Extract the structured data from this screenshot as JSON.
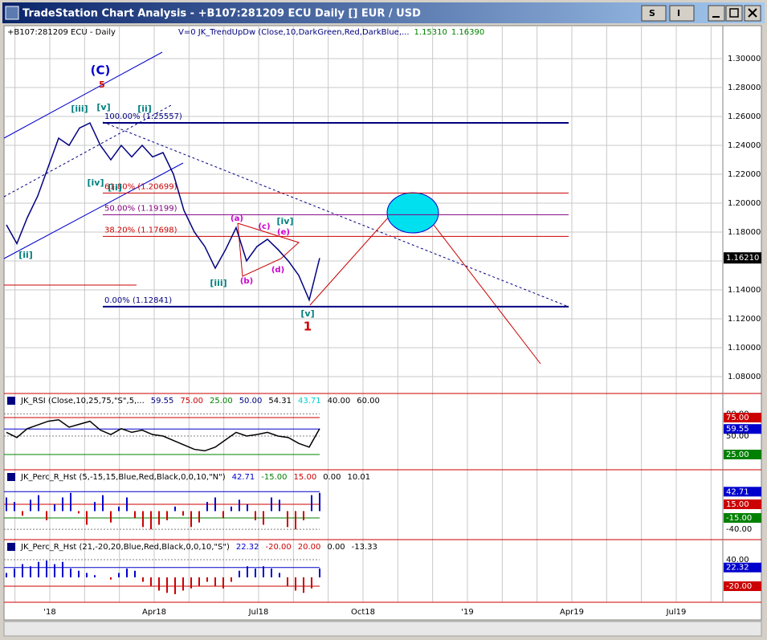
{
  "window": {
    "title": "TradeStation Chart Analysis - +B107:281209 ECU Daily [] EUR / USD",
    "buttons": [
      "S",
      "I"
    ]
  },
  "main_panel": {
    "symbol_label": "+B107:281209 ECU - Daily",
    "indicator_label": "V=0  JK_TrendUpDw (Close,10,DarkGreen,Red,DarkBlue,...",
    "indicator_values": [
      {
        "value": 1.1531,
        "label": "1.15310"
      },
      {
        "value": 1.1639,
        "label": "1.16390"
      }
    ],
    "ylim": [
      1.0683,
      1.3228
    ],
    "yticks": [
      {
        "value": 1.3,
        "label": "1.30000"
      },
      {
        "value": 1.28,
        "label": "1.28000"
      },
      {
        "value": 1.26,
        "label": "1.26000"
      },
      {
        "value": 1.24,
        "label": "1.24000"
      },
      {
        "value": 1.22,
        "label": "1.22000"
      },
      {
        "value": 1.2,
        "label": "1.20000"
      },
      {
        "value": 1.18,
        "label": "1.18000"
      },
      {
        "value": 1.16,
        "label": "1.16000"
      },
      {
        "value": 1.14,
        "label": "1.14000"
      },
      {
        "value": 1.12,
        "label": "1.12000"
      },
      {
        "value": 1.1,
        "label": "1.10000"
      },
      {
        "value": 1.08,
        "label": "1.08000"
      }
    ],
    "last_price": {
      "value": 1.1621,
      "label": "1.16210"
    },
    "fib_levels": [
      {
        "label": "100.00% (1.25557)",
        "value": 1.25557,
        "color": "#000080"
      },
      {
        "label": "61.80% (1.20699)",
        "value": 1.20699,
        "color": "#cc0000"
      },
      {
        "label": "50.00% (1.19199)",
        "value": 1.19199,
        "color": "#800080"
      },
      {
        "label": "38.20% (1.17698)",
        "value": 1.17698,
        "color": "#cc0000"
      },
      {
        "label": "0.00% (1.12841)",
        "value": 1.12841,
        "color": "#000080"
      }
    ],
    "price": {
      "color": "#000080",
      "values": [
        1.185,
        1.172,
        1.19,
        1.205,
        1.225,
        1.245,
        1.24,
        1.252,
        1.2555,
        1.24,
        1.23,
        1.24,
        1.232,
        1.24,
        1.232,
        1.235,
        1.22,
        1.195,
        1.18,
        1.17,
        1.155,
        1.168,
        1.183,
        1.16,
        1.17,
        1.175,
        1.168,
        1.16,
        1.15,
        1.133,
        1.162
      ]
    },
    "annotations": [
      "(C)",
      "5",
      "[iii]",
      "[v]",
      "[ii]",
      "[iv]",
      "[ii]",
      "[ii]",
      "[iii]",
      "(a)",
      "(b)",
      "(c)",
      "(d)",
      "(e)",
      "[iv]",
      "[v]",
      "1"
    ]
  },
  "rsi_panel": {
    "header": "JK_RSI (Close,10,25,75,\"S\",5,...",
    "header_values": [
      {
        "value": 59.55,
        "color": "#000080"
      },
      {
        "value": 75,
        "label": "75.00",
        "color": "#cc0000"
      },
      {
        "value": 25,
        "label": "25.00",
        "color": "#008000"
      },
      {
        "value": 50,
        "label": "50.00",
        "color": "#000080"
      },
      {
        "value": 54.31,
        "color": "#000000"
      },
      {
        "value": 43.71,
        "color": "#00cccc"
      },
      {
        "value": 40,
        "label": "40.00",
        "color": "#000000"
      },
      {
        "value": 60,
        "label": "60.00",
        "color": "#000000"
      }
    ],
    "axis_labels": [
      {
        "value": 80,
        "label": "80.00"
      },
      {
        "value": 75,
        "label": "75.00",
        "bg": "#cc0000"
      },
      {
        "value": 59.55,
        "bg": "#0000cc"
      },
      {
        "value": 50,
        "label": "50.00"
      },
      {
        "value": 25,
        "label": "25.00",
        "bg": "#008000"
      }
    ],
    "values": [
      55,
      48,
      60,
      65,
      70,
      72,
      62,
      66,
      70,
      58,
      52,
      60,
      55,
      58,
      52,
      50,
      44,
      38,
      32,
      30,
      35,
      45,
      55,
      50,
      52,
      55,
      50,
      48,
      40,
      35,
      60
    ]
  },
  "perc_panel_1": {
    "header": "JK_Perc_R_Hst (5,-15,15,Blue,Red,Black,0,0,10,\"N\")",
    "header_values": [
      {
        "value": 42.71,
        "color": "#0000cc"
      },
      {
        "value": -15,
        "label": "-15.00",
        "color": "#008000"
      },
      {
        "value": 15,
        "label": "15.00",
        "color": "#cc0000"
      },
      {
        "value": 0,
        "label": "0.00",
        "color": "#000000"
      },
      {
        "value": 10.01,
        "color": "#000000"
      }
    ],
    "axis_labels": [
      {
        "value": 42.71,
        "bg": "#0000cc"
      },
      {
        "value": 15,
        "label": "15.00",
        "bg": "#cc0000"
      },
      {
        "value": -15,
        "label": "-15.00",
        "bg": "#008000"
      },
      {
        "value": -40,
        "label": "-40.00"
      }
    ],
    "values": [
      30,
      20,
      -10,
      25,
      35,
      -20,
      15,
      30,
      40,
      -5,
      -30,
      20,
      35,
      -25,
      10,
      30,
      -15,
      -35,
      -40,
      -30,
      -20,
      10,
      -10,
      -35,
      -25,
      20,
      30,
      -15,
      10,
      25,
      15,
      -20,
      -30,
      30,
      25,
      -35,
      -40,
      -20,
      35,
      40
    ]
  },
  "perc_panel_2": {
    "header": "JK_Perc_R_Hst (21,-20,20,Blue,Red,Black,0,0,10,\"S\")",
    "header_values": [
      {
        "value": 22.32,
        "color": "#0000cc"
      },
      {
        "value": -20,
        "label": "-20.00",
        "color": "#cc0000"
      },
      {
        "value": 20,
        "label": "20.00",
        "color": "#cc0000"
      },
      {
        "value": 0,
        "label": "0.00",
        "color": "#000000"
      },
      {
        "value": -13.33,
        "color": "#000000"
      }
    ],
    "axis_labels": [
      {
        "value": 40,
        "label": "40.00"
      },
      {
        "value": 22.32,
        "bg": "#0000cc"
      },
      {
        "value": -20,
        "label": "-20.00",
        "bg": "#cc0000"
      }
    ],
    "values": [
      10,
      20,
      30,
      25,
      35,
      38,
      30,
      35,
      20,
      15,
      10,
      5,
      0,
      -5,
      10,
      20,
      15,
      -10,
      -20,
      -30,
      -35,
      -38,
      -30,
      -25,
      -20,
      -10,
      -20,
      -25,
      -10,
      15,
      25,
      20,
      25,
      20,
      10,
      -20,
      -30,
      -35,
      -25,
      20
    ]
  },
  "x_axis": {
    "labels": [
      "'18",
      "Apr18",
      "Jul18",
      "Oct18",
      "'19",
      "Apr19",
      "Jul19"
    ]
  }
}
